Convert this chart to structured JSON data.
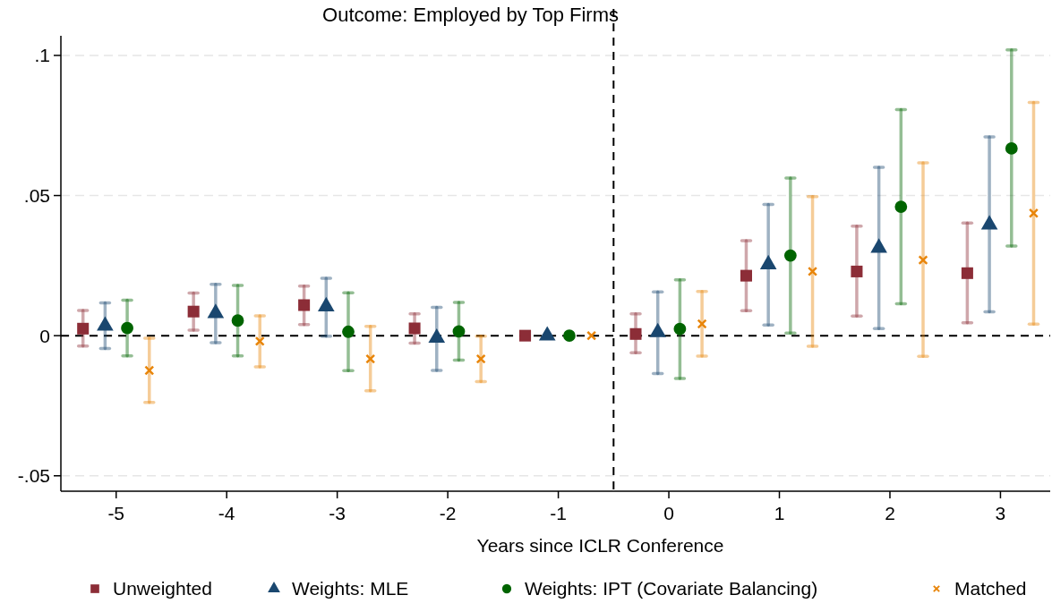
{
  "chart_data": {
    "type": "scatter",
    "title": "Outcome: Employed by Top Firms",
    "xlabel": "Years since ICLR Conference",
    "xlim": [
      -5.5,
      3.45
    ],
    "xticks": [
      -5,
      -4,
      -3,
      -2,
      -1,
      0,
      1,
      2,
      3
    ],
    "ylim": [
      -0.0555,
      0.107
    ],
    "yticks": [
      {
        "value": 0.1,
        "label": ".1"
      },
      {
        "value": 0.05,
        "label": ".05"
      },
      {
        "value": 0,
        "label": "0"
      },
      {
        "value": -0.05,
        "label": "-.05"
      }
    ],
    "grid": "y",
    "legend": "bottom",
    "ref_lines": [
      {
        "axis": "y",
        "value": 0,
        "color": "#000000",
        "line_style": "dashed"
      },
      {
        "axis": "x",
        "value": -0.5,
        "color": "#000000",
        "line_style": "dashed"
      }
    ],
    "series": [
      {
        "name": "Unweighted",
        "color": "#8c2d37",
        "marker": "square",
        "x": [
          -5.3,
          -4.3,
          -3.3,
          -2.3,
          -1.3,
          -0.3,
          0.7,
          1.7,
          2.7
        ],
        "values": [
          0.0025,
          0.0086,
          0.0109,
          0.0026,
          0,
          0.0006,
          0.0214,
          0.0229,
          0.0223
        ],
        "errors": [
          [
            -0.0037,
            0.009
          ],
          [
            0.002,
            0.0152
          ],
          [
            0.004,
            0.0177
          ],
          [
            -0.0027,
            0.0078
          ],
          null,
          [
            -0.0061,
            0.0078
          ],
          [
            0.0089,
            0.0339
          ],
          [
            0.007,
            0.0391
          ],
          [
            0.0046,
            0.0402
          ]
        ]
      },
      {
        "name": "Weights: MLE",
        "color": "#1a476f",
        "marker": "triangle",
        "x": [
          -5.1,
          -4.1,
          -3.1,
          -2.1,
          -1.1,
          -0.1,
          0.9,
          1.9,
          2.9
        ],
        "values": [
          0.0035,
          0.008,
          0.0104,
          -0.0008,
          0,
          0.0012,
          0.0254,
          0.0313,
          0.0396
        ],
        "errors": [
          [
            -0.0046,
            0.0117
          ],
          [
            -0.0025,
            0.0183
          ],
          [
            -0.0002,
            0.0205
          ],
          [
            -0.0124,
            0.0101
          ],
          null,
          [
            -0.0135,
            0.0156
          ],
          [
            0.0038,
            0.0468
          ],
          [
            0.0025,
            0.0601
          ],
          [
            0.0085,
            0.0709
          ]
        ]
      },
      {
        "name": "Weights: IPT (Covariate Balancing)",
        "color": "#006400",
        "marker": "circle",
        "x": [
          -4.9,
          -3.9,
          -2.9,
          -1.9,
          -0.9,
          0.1,
          1.1,
          2.1,
          3.1
        ],
        "values": [
          0.0027,
          0.0054,
          0.0014,
          0.0015,
          0,
          0.0024,
          0.0286,
          0.046,
          0.0668
        ],
        "errors": [
          [
            -0.0072,
            0.0127
          ],
          [
            -0.0072,
            0.0179
          ],
          [
            -0.0125,
            0.0153
          ],
          [
            -0.0087,
            0.0119
          ],
          null,
          [
            -0.0153,
            0.0199
          ],
          [
            0.0009,
            0.0562
          ],
          [
            0.0114,
            0.0807
          ],
          [
            0.032,
            0.102
          ]
        ]
      },
      {
        "name": "Matched",
        "color": "#e8850a",
        "marker": "cross",
        "x": [
          -4.7,
          -3.7,
          -2.7,
          -1.7,
          -0.7,
          0.3,
          1.3,
          2.3,
          3.3
        ],
        "values": [
          -0.0124,
          -0.002,
          -0.0083,
          -0.0083,
          0,
          0.0042,
          0.0229,
          0.027,
          0.0437
        ],
        "errors": [
          [
            -0.0238,
            -0.0009
          ],
          [
            -0.0111,
            0.0071
          ],
          [
            -0.0197,
            0.0033
          ],
          [
            -0.0164,
            -0.0002
          ],
          null,
          [
            -0.0073,
            0.0158
          ],
          [
            -0.0038,
            0.0496
          ],
          [
            -0.0074,
            0.0617
          ],
          [
            0.0041,
            0.0832
          ]
        ]
      }
    ]
  }
}
